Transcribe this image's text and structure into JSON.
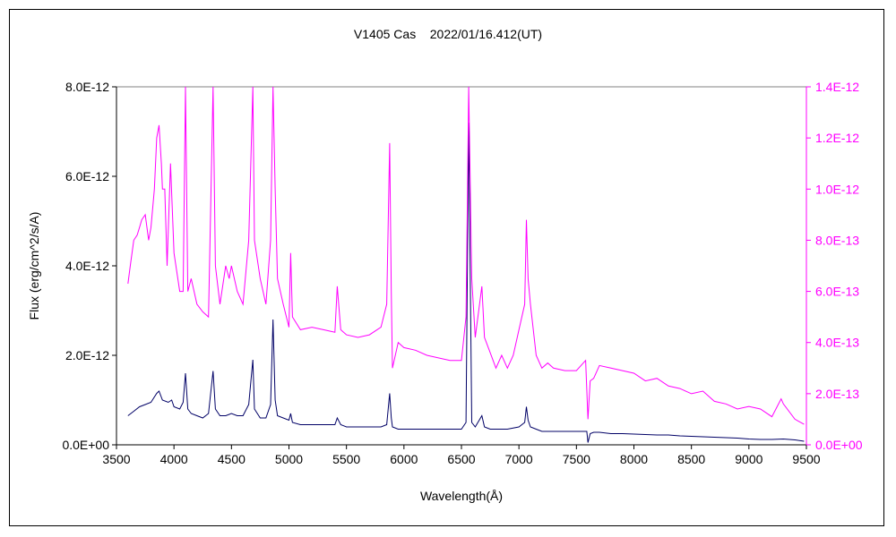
{
  "chart_data": {
    "type": "line",
    "title": "V1405 Cas    2022/01/16.412(UT)",
    "xlabel": "Wavelength(Å)",
    "ylabel": "Flux (erg/cm^2/s/A)",
    "xlim": [
      3500,
      9500
    ],
    "ylim_left": [
      0,
      8e-12
    ],
    "ylim_right": [
      0,
      1.4e-12
    ],
    "grid": false,
    "legend": "none",
    "x_ticks": [
      "3500",
      "4000",
      "4500",
      "5000",
      "5500",
      "6000",
      "6500",
      "7000",
      "7500",
      "8000",
      "8500",
      "9000",
      "9500"
    ],
    "y_ticks_left": [
      "0.0E+00",
      "2.0E-12",
      "4.0E-12",
      "6.0E-12",
      "8.0E-12"
    ],
    "y_ticks_right": [
      "0.0E+00",
      "2.0E-13",
      "4.0E-13",
      "6.0E-13",
      "8.0E-13",
      "1.0E-12",
      "1.2E-12",
      "1.4E-12"
    ],
    "series": [
      {
        "axis": "left",
        "color": "#000066",
        "x": [
          3600,
          3650,
          3700,
          3750,
          3800,
          3850,
          3870,
          3900,
          3950,
          3980,
          4000,
          4050,
          4080,
          4100,
          4120,
          4150,
          4200,
          4250,
          4300,
          4340,
          4360,
          4400,
          4450,
          4500,
          4550,
          4600,
          4650,
          4686,
          4700,
          4750,
          4800,
          4840,
          4861,
          4880,
          4900,
          4950,
          5000,
          5015,
          5030,
          5100,
          5200,
          5300,
          5400,
          5420,
          5450,
          5500,
          5600,
          5700,
          5800,
          5850,
          5876,
          5890,
          5900,
          5950,
          6000,
          6100,
          6200,
          6300,
          6400,
          6500,
          6540,
          6563,
          6590,
          6620,
          6678,
          6700,
          6750,
          6800,
          6900,
          7000,
          7050,
          7065,
          7080,
          7100,
          7150,
          7200,
          7300,
          7400,
          7500,
          7590,
          7600,
          7620,
          7650,
          7700,
          7800,
          7900,
          8000,
          8100,
          8200,
          8300,
          8400,
          8500,
          8600,
          8700,
          8800,
          8900,
          9000,
          9100,
          9200,
          9300,
          9400,
          9480
        ],
        "y": [
          6.5e-13,
          7.5e-13,
          8.5e-13,
          9e-13,
          9.5e-13,
          1.15e-12,
          1.2e-12,
          1e-12,
          9.5e-13,
          1e-12,
          8.5e-13,
          8e-13,
          9.5e-13,
          1.6e-12,
          8e-13,
          7e-13,
          6.5e-13,
          6e-13,
          7e-13,
          1.65e-12,
          8e-13,
          6.5e-13,
          6.5e-13,
          7e-13,
          6.5e-13,
          6.5e-13,
          9e-13,
          1.9e-12,
          8e-13,
          6e-13,
          6e-13,
          9e-13,
          2.8e-12,
          1e-12,
          6.5e-13,
          6e-13,
          5.5e-13,
          7e-13,
          5e-13,
          4.5e-13,
          4.5e-13,
          4.5e-13,
          4.5e-13,
          6e-13,
          4.5e-13,
          4e-13,
          4e-13,
          4e-13,
          4e-13,
          4.5e-13,
          1.15e-12,
          6e-13,
          4e-13,
          3.5e-13,
          3.5e-13,
          3.5e-13,
          3.5e-13,
          3.5e-13,
          3.5e-13,
          3.5e-13,
          5e-13,
          7.2e-12,
          5e-13,
          4e-13,
          6.5e-13,
          4e-13,
          3.5e-13,
          3.5e-13,
          3.5e-13,
          4e-13,
          5e-13,
          8.5e-13,
          5.5e-13,
          4e-13,
          3.5e-13,
          3e-13,
          3e-13,
          3e-13,
          3e-13,
          3e-13,
          5e-14,
          2.5e-13,
          2.8e-13,
          2.8e-13,
          2.5e-13,
          2.5e-13,
          2.4e-13,
          2.3e-13,
          2.2e-13,
          2.2e-13,
          2e-13,
          1.9e-13,
          1.8e-13,
          1.7e-13,
          1.6e-13,
          1.5e-13,
          1.3e-13,
          1.2e-13,
          1.2e-13,
          1.3e-13,
          1.1e-13,
          8e-14
        ]
      },
      {
        "axis": "right",
        "color": "#ff00ff",
        "x": [
          3600,
          3620,
          3650,
          3680,
          3700,
          3720,
          3750,
          3780,
          3800,
          3830,
          3850,
          3870,
          3890,
          3900,
          3920,
          3940,
          3970,
          4000,
          4050,
          4080,
          4100,
          4120,
          4150,
          4200,
          4250,
          4300,
          4340,
          4360,
          4400,
          4450,
          4480,
          4500,
          4550,
          4600,
          4650,
          4686,
          4700,
          4750,
          4800,
          4840,
          4861,
          4880,
          4900,
          4950,
          5000,
          5015,
          5030,
          5100,
          5200,
          5300,
          5400,
          5420,
          5450,
          5500,
          5600,
          5700,
          5800,
          5850,
          5876,
          5890,
          5900,
          5950,
          6000,
          6100,
          6200,
          6300,
          6400,
          6500,
          6540,
          6563,
          6590,
          6620,
          6678,
          6700,
          6750,
          6800,
          6850,
          6900,
          6950,
          7000,
          7050,
          7065,
          7080,
          7100,
          7150,
          7200,
          7250,
          7300,
          7400,
          7500,
          7580,
          7600,
          7620,
          7650,
          7700,
          7800,
          7900,
          8000,
          8100,
          8200,
          8300,
          8400,
          8500,
          8600,
          8700,
          8800,
          8900,
          9000,
          9100,
          9200,
          9280,
          9300,
          9400,
          9480
        ],
        "y": [
          6.3e-13,
          7e-13,
          8e-13,
          8.2e-13,
          8.5e-13,
          8.8e-13,
          9e-13,
          8e-13,
          8.5e-13,
          1e-12,
          1.2e-12,
          1.25e-12,
          1.1e-12,
          1e-12,
          1e-12,
          7e-13,
          1.1e-12,
          7.5e-13,
          6e-13,
          6e-13,
          1.4e-12,
          6e-13,
          6.5e-13,
          5.5e-13,
          5.2e-13,
          5e-13,
          1.4e-12,
          7e-13,
          5.5e-13,
          7e-13,
          6.5e-13,
          7e-13,
          6e-13,
          5.5e-13,
          8e-13,
          1.4e-12,
          8e-13,
          6.5e-13,
          5.5e-13,
          8e-13,
          1.4e-12,
          1e-12,
          6.5e-13,
          5.5e-13,
          4.6e-13,
          7.5e-13,
          5e-13,
          4.5e-13,
          4.6e-13,
          4.5e-13,
          4.4e-13,
          6.2e-13,
          4.5e-13,
          4.3e-13,
          4.2e-13,
          4.3e-13,
          4.6e-13,
          5.5e-13,
          1.18e-12,
          6e-13,
          3e-13,
          4e-13,
          3.8e-13,
          3.7e-13,
          3.5e-13,
          3.4e-13,
          3.3e-13,
          3.3e-13,
          5e-13,
          1.4e-12,
          6.5e-13,
          4.2e-13,
          6.2e-13,
          4.2e-13,
          3.6e-13,
          3e-13,
          3.5e-13,
          3e-13,
          3.5e-13,
          4.5e-13,
          5.5e-13,
          8.8e-13,
          6.5e-13,
          5.5e-13,
          3.5e-13,
          3e-13,
          3.2e-13,
          3e-13,
          2.9e-13,
          2.9e-13,
          3.3e-13,
          1e-13,
          2.5e-13,
          2.6e-13,
          3.1e-13,
          3e-13,
          2.9e-13,
          2.8e-13,
          2.5e-13,
          2.6e-13,
          2.3e-13,
          2.2e-13,
          2e-13,
          2.1e-13,
          1.7e-13,
          1.6e-13,
          1.4e-13,
          1.5e-13,
          1.4e-13,
          1.1e-13,
          1.8e-13,
          1.6e-13,
          1e-13,
          8e-14
        ]
      }
    ]
  }
}
